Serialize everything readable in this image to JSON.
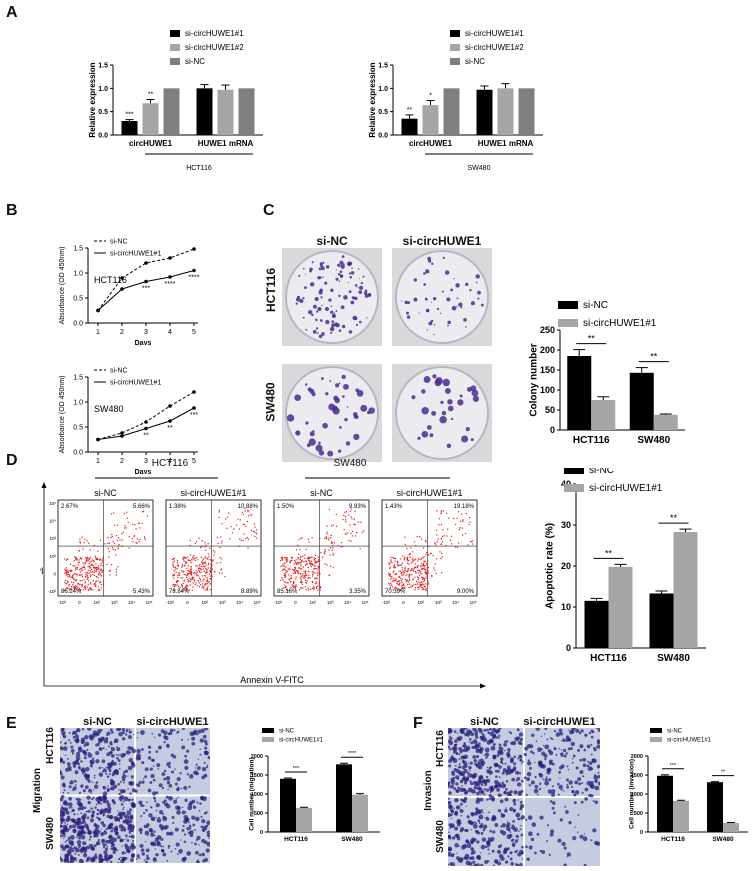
{
  "panels": {
    "a": "A",
    "b": "B",
    "c": "C",
    "d": "D",
    "e": "E",
    "f": "F"
  },
  "panel_a": {
    "legend": [
      "si-circHUWE1#1",
      "si-circHUWE1#2",
      "si-NC"
    ],
    "colors": [
      "#000000",
      "#a6a6a6",
      "#7f7f7f"
    ],
    "ylabel": "Relative expression",
    "charts": [
      {
        "cell": "HCT116",
        "groups": [
          "circHUWE1",
          "HUWE1 mRNA"
        ],
        "values": [
          [
            0.3,
            0.68,
            1.0
          ],
          [
            1.0,
            0.97,
            1.0
          ]
        ],
        "errors": [
          [
            0.03,
            0.08,
            0
          ],
          [
            0.08,
            0.1,
            0
          ]
        ],
        "sig": [
          [
            "***",
            "**",
            ""
          ],
          [
            "",
            "",
            ""
          ]
        ],
        "ylim": [
          0,
          1.5
        ],
        "yticks": [
          "0.0",
          "0.5",
          "1.0",
          "1.5"
        ]
      },
      {
        "cell": "SW480",
        "groups": [
          "circHUWE1",
          "HUWE1 mRNA"
        ],
        "values": [
          [
            0.35,
            0.64,
            1.0
          ],
          [
            0.97,
            1.0,
            1.0
          ]
        ],
        "errors": [
          [
            0.08,
            0.1,
            0
          ],
          [
            0.08,
            0.1,
            0
          ]
        ],
        "sig": [
          [
            "**",
            "*",
            ""
          ],
          [
            "",
            "",
            ""
          ]
        ],
        "ylim": [
          0,
          1.5
        ],
        "yticks": [
          "0.0",
          "0.5",
          "1.0",
          "1.5"
        ]
      }
    ]
  },
  "panel_b": {
    "legend": [
      "si-NC",
      "si-circHUWE1#1"
    ],
    "ylabel": "Absorbance (OD 450nm)",
    "xlabel": "Days",
    "xticks": [
      "1",
      "2",
      "3",
      "4",
      "5"
    ],
    "charts": [
      {
        "cell": "HCT116",
        "yticks": [
          "0.0",
          "0.5",
          "1.0",
          "1.5"
        ],
        "ylim": [
          0,
          1.5
        ],
        "nc": [
          0.25,
          0.9,
          1.2,
          1.3,
          1.48
        ],
        "si": [
          0.25,
          0.68,
          0.83,
          0.92,
          1.05
        ],
        "sig": [
          "",
          "",
          "***",
          "****",
          "****"
        ]
      },
      {
        "cell": "SW480",
        "yticks": [
          "0.0",
          "0.5",
          "1.0",
          "1.5"
        ],
        "ylim": [
          0,
          1.5
        ],
        "nc": [
          0.25,
          0.38,
          0.6,
          0.92,
          1.2
        ],
        "si": [
          0.25,
          0.32,
          0.47,
          0.62,
          0.88
        ],
        "sig": [
          "",
          "",
          "**",
          "**",
          "***"
        ]
      }
    ]
  },
  "panel_c": {
    "photo_cols": [
      "si-NC",
      "si-circHUWE1"
    ],
    "photo_rows": [
      "HCT116",
      "SW480"
    ],
    "legend": [
      "si-NC",
      "si-circHUWE1#1"
    ],
    "ylabel": "Colony number",
    "yticks": [
      "0",
      "50",
      "100",
      "150",
      "200",
      "250"
    ],
    "ylim": [
      0,
      250
    ],
    "groups": [
      "HCT116",
      "SW480"
    ],
    "values": [
      [
        185,
        75
      ],
      [
        143,
        38
      ]
    ],
    "errors": [
      [
        16,
        8
      ],
      [
        13,
        2
      ]
    ],
    "sig": [
      "**",
      "**"
    ]
  },
  "panel_d": {
    "cells": [
      "HCT116",
      "SW480"
    ],
    "plots": [
      {
        "title": "si-NC",
        "q": [
          "2.67%",
          "5.66%",
          "86.24%",
          "5.43%"
        ]
      },
      {
        "title": "si-circHUWE1#1",
        "q": [
          "1.38%",
          "10.88%",
          "78.84%",
          "8.89%"
        ]
      },
      {
        "title": "si-NC",
        "q": [
          "1.50%",
          "9.93%",
          "85.16%",
          "3.35%"
        ]
      },
      {
        "title": "si-circHUWE1#1",
        "q": [
          "1.43%",
          "19.18%",
          "70.39%",
          "9.00%"
        ]
      }
    ],
    "flow_ytick": [
      "10⁵",
      "10⁴",
      "10³",
      "10²",
      "0",
      "-10²"
    ],
    "flow_xtick": [
      "-10²",
      "0",
      "10²",
      "10³",
      "10⁴",
      "10⁵"
    ],
    "pi_label": "PI",
    "x_axis_label": "Annexin V-FITC",
    "legend": [
      "si-NC",
      "si-circHUWE1#1"
    ],
    "ylabel": "Apoptotic rate (%)",
    "yticks": [
      "0",
      "10",
      "20",
      "30",
      "40"
    ],
    "ylim": [
      0,
      40
    ],
    "groups": [
      "HCT116",
      "SW480"
    ],
    "values": [
      [
        11.5,
        19.8
      ],
      [
        13.3,
        28.3
      ]
    ],
    "errors": [
      [
        0.6,
        0.6
      ],
      [
        0.6,
        0.7
      ]
    ],
    "sig": [
      "**",
      "**"
    ]
  },
  "panel_e": {
    "photo_cols": [
      "si-NC",
      "si-circHUWE1"
    ],
    "photo_rows": [
      "HCT116",
      "SW480"
    ],
    "side_label": "Migration",
    "legend": [
      "si-NC",
      "si-circHUWE1#1"
    ],
    "ylabel": "Cell number (migration)",
    "yticks": [
      "0",
      "500",
      "1000",
      "1500",
      "2000"
    ],
    "ylim": [
      0,
      2000
    ],
    "groups": [
      "HCT116",
      "SW480"
    ],
    "values": [
      [
        1400,
        630
      ],
      [
        1780,
        980
      ]
    ],
    "errors": [
      [
        20,
        20
      ],
      [
        30,
        30
      ]
    ],
    "sig": [
      "***",
      "****"
    ]
  },
  "panel_f": {
    "photo_cols": [
      "si-NC",
      "si-circHUWE1"
    ],
    "photo_rows": [
      "HCT116",
      "SW480"
    ],
    "side_label": "Invasion",
    "legend": [
      "si-NC",
      "si-circHUWE1#1"
    ],
    "ylabel": "Cell number (invasion)",
    "yticks": [
      "0",
      "500",
      "1000",
      "1500",
      "2000"
    ],
    "ylim": [
      0,
      2000
    ],
    "groups": [
      "HCT116",
      "SW480"
    ],
    "values": [
      [
        1480,
        820
      ],
      [
        1310,
        240
      ]
    ],
    "errors": [
      [
        25,
        15
      ],
      [
        15,
        10
      ]
    ],
    "sig": [
      "***",
      "**"
    ]
  },
  "chart_data": [
    {
      "type": "bar",
      "title": "",
      "xlabel": "HCT116",
      "ylabel": "Relative expression",
      "categories": [
        "circHUWE1",
        "HUWE1 mRNA"
      ],
      "series": [
        {
          "name": "si-circHUWE1#1",
          "values": [
            0.3,
            1.0
          ]
        },
        {
          "name": "si-circHUWE1#2",
          "values": [
            0.68,
            0.97
          ]
        },
        {
          "name": "si-NC",
          "values": [
            1.0,
            1.0
          ]
        }
      ],
      "ylim": [
        0,
        1.5
      ]
    },
    {
      "type": "bar",
      "title": "",
      "xlabel": "SW480",
      "ylabel": "Relative expression",
      "categories": [
        "circHUWE1",
        "HUWE1 mRNA"
      ],
      "series": [
        {
          "name": "si-circHUWE1#1",
          "values": [
            0.35,
            0.97
          ]
        },
        {
          "name": "si-circHUWE1#2",
          "values": [
            0.64,
            1.0
          ]
        },
        {
          "name": "si-NC",
          "values": [
            1.0,
            1.0
          ]
        }
      ],
      "ylim": [
        0,
        1.5
      ]
    },
    {
      "type": "line",
      "title": "HCT116",
      "xlabel": "Days",
      "ylabel": "Absorbance (OD 450nm)",
      "x": [
        1,
        2,
        3,
        4,
        5
      ],
      "series": [
        {
          "name": "si-NC",
          "values": [
            0.25,
            0.9,
            1.2,
            1.3,
            1.48
          ]
        },
        {
          "name": "si-circHUWE1#1",
          "values": [
            0.25,
            0.68,
            0.83,
            0.92,
            1.05
          ]
        }
      ],
      "ylim": [
        0,
        1.5
      ]
    },
    {
      "type": "line",
      "title": "SW480",
      "xlabel": "Days",
      "ylabel": "Absorbance (OD 450nm)",
      "x": [
        1,
        2,
        3,
        4,
        5
      ],
      "series": [
        {
          "name": "si-NC",
          "values": [
            0.25,
            0.38,
            0.6,
            0.92,
            1.2
          ]
        },
        {
          "name": "si-circHUWE1#1",
          "values": [
            0.25,
            0.32,
            0.47,
            0.62,
            0.88
          ]
        }
      ],
      "ylim": [
        0,
        1.5
      ]
    },
    {
      "type": "bar",
      "ylabel": "Colony number",
      "categories": [
        "HCT116",
        "SW480"
      ],
      "series": [
        {
          "name": "si-NC",
          "values": [
            185,
            143
          ]
        },
        {
          "name": "si-circHUWE1#1",
          "values": [
            75,
            38
          ]
        }
      ],
      "ylim": [
        0,
        250
      ]
    },
    {
      "type": "bar",
      "ylabel": "Apoptotic rate (%)",
      "categories": [
        "HCT116",
        "SW480"
      ],
      "series": [
        {
          "name": "si-NC",
          "values": [
            11.5,
            13.3
          ]
        },
        {
          "name": "si-circHUWE1#1",
          "values": [
            19.8,
            28.3
          ]
        }
      ],
      "ylim": [
        0,
        40
      ]
    },
    {
      "type": "bar",
      "ylabel": "Cell number (migration)",
      "categories": [
        "HCT116",
        "SW480"
      ],
      "series": [
        {
          "name": "si-NC",
          "values": [
            1400,
            1780
          ]
        },
        {
          "name": "si-circHUWE1#1",
          "values": [
            630,
            980
          ]
        }
      ],
      "ylim": [
        0,
        2000
      ]
    },
    {
      "type": "bar",
      "ylabel": "Cell number (invasion)",
      "categories": [
        "HCT116",
        "SW480"
      ],
      "series": [
        {
          "name": "si-NC",
          "values": [
            1480,
            1310
          ]
        },
        {
          "name": "si-circHUWE1#1",
          "values": [
            820,
            240
          ]
        }
      ],
      "ylim": [
        0,
        2000
      ]
    }
  ]
}
